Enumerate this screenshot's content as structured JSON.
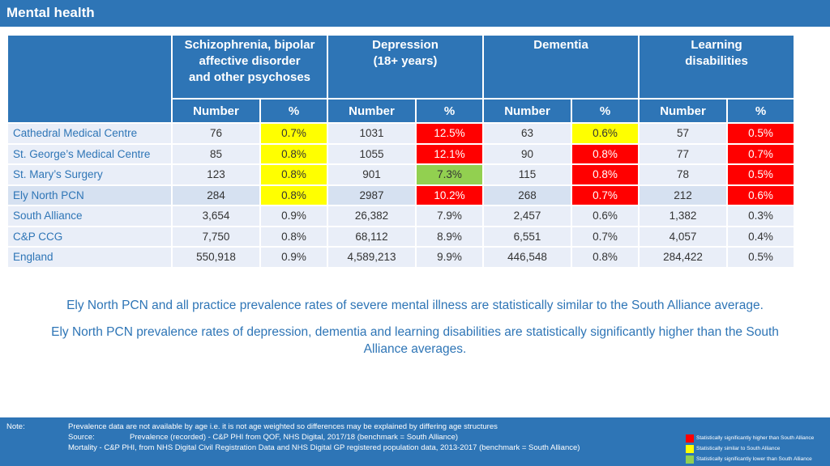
{
  "title": "Mental health",
  "columns": {
    "groups": [
      {
        "label": "Schizophrenia, bipolar\naffective disorder\nand other psychoses"
      },
      {
        "label": "Depression\n(18+ years)"
      },
      {
        "label": "Dementia"
      },
      {
        "label": "Learning\ndisabilities"
      }
    ],
    "number_label": "Number",
    "pct_label": "%"
  },
  "rows": [
    {
      "name": "Cathedral Medical Centre",
      "values": [
        "76",
        "0.7%",
        "1031",
        "12.5%",
        "63",
        "0.6%",
        "57",
        "0.5%"
      ],
      "sig": [
        "",
        "sim",
        "",
        "high",
        "",
        "sim",
        "",
        "high"
      ]
    },
    {
      "name": "St. George’s Medical Centre",
      "values": [
        "85",
        "0.8%",
        "1055",
        "12.1%",
        "90",
        "0.8%",
        "77",
        "0.7%"
      ],
      "sig": [
        "",
        "sim",
        "",
        "high",
        "",
        "high",
        "",
        "high"
      ]
    },
    {
      "name": "St. Mary’s Surgery",
      "values": [
        "123",
        "0.8%",
        "901",
        "7.3%",
        "115",
        "0.8%",
        "78",
        "0.5%"
      ],
      "sig": [
        "",
        "sim",
        "",
        "low",
        "",
        "high",
        "",
        "high"
      ]
    },
    {
      "name": "Ely North PCN",
      "values": [
        "284",
        "0.8%",
        "2987",
        "10.2%",
        "268",
        "0.7%",
        "212",
        "0.6%"
      ],
      "sig": [
        "",
        "sim",
        "",
        "high",
        "",
        "high",
        "",
        "high"
      ],
      "highlight": true
    },
    {
      "name": "South Alliance",
      "values": [
        "3,654",
        "0.9%",
        "26,382",
        "7.9%",
        "2,457",
        "0.6%",
        "1,382",
        "0.3%"
      ],
      "sig": [
        "",
        "",
        "",
        "",
        "",
        "",
        "",
        ""
      ]
    },
    {
      "name": "C&P CCG",
      "values": [
        "7,750",
        "0.8%",
        "68,112",
        "8.9%",
        "6,551",
        "0.7%",
        "4,057",
        "0.4%"
      ],
      "sig": [
        "",
        "",
        "",
        "",
        "",
        "",
        "",
        ""
      ]
    },
    {
      "name": "England",
      "values": [
        "550,918",
        "0.9%",
        "4,589,213",
        "9.9%",
        "446,548",
        "0.8%",
        "284,422",
        "0.5%"
      ],
      "sig": [
        "",
        "",
        "",
        "",
        "",
        "",
        "",
        ""
      ]
    }
  ],
  "messages": {
    "line1": "Ely North PCN and all practice prevalence rates of severe mental illness are statistically similar to the South Alliance average.",
    "line2": "Ely North PCN prevalence rates of depression, dementia and learning disabilities are statistically significantly higher than the South Alliance averages."
  },
  "footer": {
    "note_label": "Note:",
    "note_text": "Prevalence data are not available by age i.e. it is not age weighted so differences may be explained by differing age structures",
    "source_label": "Source:",
    "source_text": "Prevalence (recorded) - C&P PHI from QOF, NHS Digital, 2017/18 (benchmark = South Alliance)",
    "mortality_text": "Mortality - C&P PHI, from NHS Digital Civil Registration Data and NHS Digital GP registered population data, 2013-2017 (benchmark = South Alliance)"
  },
  "legend": [
    {
      "color": "#ff0000",
      "label": "Statistically significantly higher than South Alliance"
    },
    {
      "color": "#ffff00",
      "label": "Statistically similar to South Alliance"
    },
    {
      "color": "#92d050",
      "label": "Statistically significantly lower than South Alliance"
    }
  ],
  "colors": {
    "header_blue": "#2e75b6",
    "row_bg": "#e9eef8",
    "highlight_row_bg": "#d6e1f1",
    "sig_high": "#ff0000",
    "sig_similar": "#ffff00",
    "sig_low": "#92d050"
  }
}
